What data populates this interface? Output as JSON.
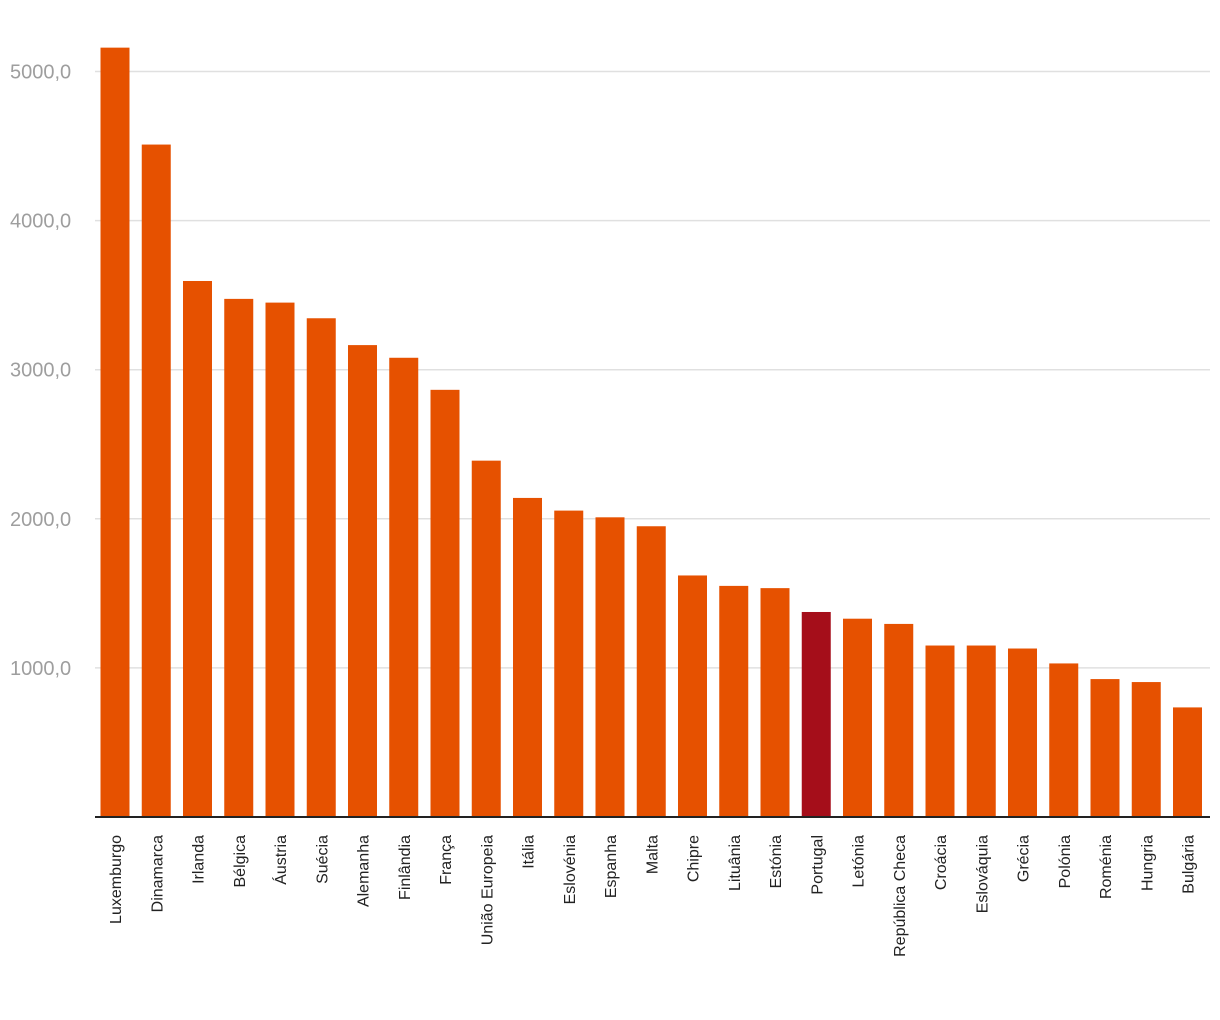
{
  "chart_data": {
    "type": "bar",
    "categories": [
      "Luxemburgo",
      "Dinamarca",
      "Irlanda",
      "Bélgica",
      "Áustria",
      "Suécia",
      "Alemanha",
      "Finlândia",
      "França",
      "União Europeia",
      "Itália",
      "Eslovénia",
      "Espanha",
      "Malta",
      "Chipre",
      "Lituânia",
      "Estónia",
      "Portugal",
      "Letónia",
      "República Checa",
      "Croácia",
      "Eslováquia",
      "Grécia",
      "Polónia",
      "Roménia",
      "Hungria",
      "Bulgária"
    ],
    "values": [
      5160,
      4510,
      3595,
      3475,
      3450,
      3345,
      3165,
      3080,
      2865,
      2390,
      2140,
      2055,
      2010,
      1950,
      1620,
      1550,
      1535,
      1375,
      1330,
      1295,
      1150,
      1150,
      1130,
      1030,
      925,
      905,
      735
    ],
    "yticks": [
      "1000,0",
      "2000,0",
      "3000,0",
      "4000,0",
      "5000,0"
    ],
    "ytick_values": [
      1000,
      2000,
      3000,
      4000,
      5000
    ],
    "ylim": [
      0,
      5300
    ],
    "grid": true,
    "title": "",
    "xlabel": "",
    "ylabel": "",
    "colors": {
      "bar": "#e65100",
      "highlight": "#a50e1a"
    },
    "highlight_category": "Portugal"
  }
}
